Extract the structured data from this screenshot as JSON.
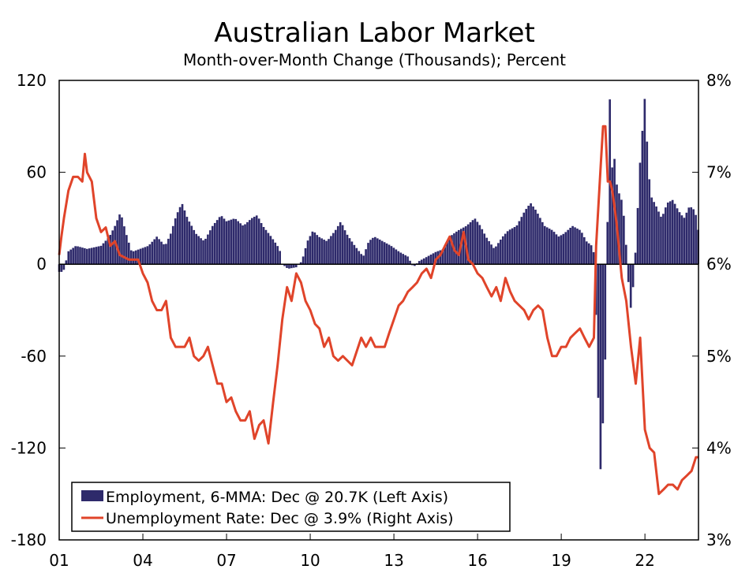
{
  "title": "Australian Labor Market",
  "subtitle": "Month-over-Month Change (Thousands); Percent",
  "colors": {
    "employment": "#2e2a6b",
    "unemployment": "#e0442a",
    "axis": "#000000"
  },
  "chart_data": {
    "type": "bar+line",
    "title": "Australian Labor Market",
    "subtitle": "Month-over-Month Change (Thousands); Percent",
    "left_axis": {
      "ylim": [
        -180,
        120
      ],
      "ticks": [
        "120",
        "60",
        "0",
        "-60",
        "-120",
        "-180"
      ],
      "tick_values": [
        120,
        60,
        0,
        -60,
        -120,
        -180
      ]
    },
    "right_axis": {
      "ylim": [
        3,
        8
      ],
      "ticks": [
        "8%",
        "7%",
        "6%",
        "5%",
        "4%",
        "3%"
      ],
      "tick_values": [
        8,
        7,
        6,
        5,
        4,
        3
      ]
    },
    "x_axis": {
      "range": [
        2001.0,
        2023.92
      ],
      "ticks": [
        "01",
        "04",
        "07",
        "10",
        "13",
        "16",
        "19",
        "22"
      ],
      "tick_values": [
        2001,
        2004,
        2007,
        2010,
        2013,
        2016,
        2019,
        2022
      ]
    },
    "legend": {
      "position": "bottom-left",
      "entries": [
        "Employment, 6-MMA: Dec @ 20.7K (Left Axis)",
        "Unemployment Rate: Dec @ 3.9% (Right Axis)"
      ]
    },
    "series": [
      {
        "name": "Employment, 6-MMA: Dec @ 20.7K (Left Axis)",
        "kind": "bar",
        "axis": "left",
        "x_start": 2001.0,
        "x_step": 0.0833,
        "values_note": "monthly, Jan 2001 onward",
        "keypoints": [
          [
            2001.0,
            -5
          ],
          [
            2001.1,
            -5
          ],
          [
            2001.2,
            -3
          ],
          [
            2001.3,
            8
          ],
          [
            2001.6,
            12
          ],
          [
            2002.0,
            10
          ],
          [
            2002.5,
            12
          ],
          [
            2002.8,
            18
          ],
          [
            2003.0,
            25
          ],
          [
            2003.2,
            34
          ],
          [
            2003.4,
            20
          ],
          [
            2003.6,
            8
          ],
          [
            2003.9,
            10
          ],
          [
            2004.2,
            12
          ],
          [
            2004.5,
            18
          ],
          [
            2004.8,
            12
          ],
          [
            2005.0,
            20
          ],
          [
            2005.2,
            32
          ],
          [
            2005.4,
            40
          ],
          [
            2005.6,
            30
          ],
          [
            2005.9,
            20
          ],
          [
            2006.2,
            15
          ],
          [
            2006.5,
            25
          ],
          [
            2006.8,
            32
          ],
          [
            2007.0,
            28
          ],
          [
            2007.3,
            30
          ],
          [
            2007.6,
            25
          ],
          [
            2007.9,
            30
          ],
          [
            2008.1,
            32
          ],
          [
            2008.3,
            25
          ],
          [
            2008.6,
            18
          ],
          [
            2008.9,
            10
          ],
          [
            2009.0,
            0
          ],
          [
            2009.2,
            -3
          ],
          [
            2009.5,
            -2
          ],
          [
            2009.7,
            2
          ],
          [
            2009.9,
            15
          ],
          [
            2010.1,
            22
          ],
          [
            2010.3,
            18
          ],
          [
            2010.6,
            15
          ],
          [
            2010.9,
            22
          ],
          [
            2011.1,
            28
          ],
          [
            2011.3,
            20
          ],
          [
            2011.6,
            12
          ],
          [
            2011.9,
            5
          ],
          [
            2012.1,
            15
          ],
          [
            2012.3,
            18
          ],
          [
            2012.6,
            15
          ],
          [
            2012.9,
            12
          ],
          [
            2013.2,
            8
          ],
          [
            2013.5,
            5
          ],
          [
            2013.7,
            -2
          ],
          [
            2013.9,
            2
          ],
          [
            2014.2,
            5
          ],
          [
            2014.5,
            8
          ],
          [
            2014.8,
            10
          ],
          [
            2015.0,
            18
          ],
          [
            2015.3,
            22
          ],
          [
            2015.6,
            25
          ],
          [
            2015.9,
            30
          ],
          [
            2016.1,
            25
          ],
          [
            2016.3,
            18
          ],
          [
            2016.6,
            10
          ],
          [
            2016.9,
            18
          ],
          [
            2017.1,
            22
          ],
          [
            2017.4,
            25
          ],
          [
            2017.7,
            35
          ],
          [
            2017.9,
            40
          ],
          [
            2018.1,
            35
          ],
          [
            2018.4,
            25
          ],
          [
            2018.7,
            22
          ],
          [
            2018.9,
            18
          ],
          [
            2019.1,
            20
          ],
          [
            2019.4,
            25
          ],
          [
            2019.7,
            22
          ],
          [
            2019.9,
            15
          ],
          [
            2020.1,
            12
          ],
          [
            2020.2,
            5
          ],
          [
            2020.25,
            -40
          ],
          [
            2020.33,
            -90
          ],
          [
            2020.42,
            -140
          ],
          [
            2020.5,
            -100
          ],
          [
            2020.58,
            -60
          ],
          [
            2020.67,
            40
          ],
          [
            2020.75,
            115
          ],
          [
            2020.83,
            60
          ],
          [
            2020.92,
            70
          ],
          [
            2021.0,
            50
          ],
          [
            2021.1,
            45
          ],
          [
            2021.2,
            40
          ],
          [
            2021.3,
            20
          ],
          [
            2021.42,
            -15
          ],
          [
            2021.5,
            -30
          ],
          [
            2021.6,
            -10
          ],
          [
            2021.7,
            20
          ],
          [
            2021.8,
            60
          ],
          [
            2022.0,
            110
          ],
          [
            2022.1,
            70
          ],
          [
            2022.2,
            45
          ],
          [
            2022.4,
            38
          ],
          [
            2022.6,
            30
          ],
          [
            2022.8,
            40
          ],
          [
            2023.0,
            42
          ],
          [
            2023.2,
            35
          ],
          [
            2023.4,
            30
          ],
          [
            2023.6,
            38
          ],
          [
            2023.8,
            35
          ],
          [
            2023.92,
            21
          ]
        ]
      },
      {
        "name": "Unemployment Rate: Dec @ 3.9% (Right Axis)",
        "kind": "line",
        "axis": "right",
        "points": [
          [
            2001.0,
            6.1
          ],
          [
            2001.08,
            6.3
          ],
          [
            2001.17,
            6.5
          ],
          [
            2001.33,
            6.8
          ],
          [
            2001.5,
            6.95
          ],
          [
            2001.67,
            6.95
          ],
          [
            2001.83,
            6.9
          ],
          [
            2001.92,
            7.2
          ],
          [
            2002.0,
            7.0
          ],
          [
            2002.17,
            6.9
          ],
          [
            2002.33,
            6.5
          ],
          [
            2002.5,
            6.35
          ],
          [
            2002.67,
            6.4
          ],
          [
            2002.83,
            6.2
          ],
          [
            2003.0,
            6.25
          ],
          [
            2003.17,
            6.1
          ],
          [
            2003.5,
            6.05
          ],
          [
            2003.83,
            6.05
          ],
          [
            2004.0,
            5.9
          ],
          [
            2004.17,
            5.8
          ],
          [
            2004.33,
            5.6
          ],
          [
            2004.5,
            5.5
          ],
          [
            2004.67,
            5.5
          ],
          [
            2004.83,
            5.6
          ],
          [
            2005.0,
            5.2
          ],
          [
            2005.17,
            5.1
          ],
          [
            2005.5,
            5.1
          ],
          [
            2005.67,
            5.2
          ],
          [
            2005.83,
            5.0
          ],
          [
            2006.0,
            4.95
          ],
          [
            2006.17,
            5.0
          ],
          [
            2006.33,
            5.1
          ],
          [
            2006.5,
            4.9
          ],
          [
            2006.67,
            4.7
          ],
          [
            2006.83,
            4.7
          ],
          [
            2007.0,
            4.5
          ],
          [
            2007.17,
            4.55
          ],
          [
            2007.33,
            4.4
          ],
          [
            2007.5,
            4.3
          ],
          [
            2007.67,
            4.3
          ],
          [
            2007.83,
            4.4
          ],
          [
            2008.0,
            4.1
          ],
          [
            2008.17,
            4.25
          ],
          [
            2008.33,
            4.3
          ],
          [
            2008.5,
            4.05
          ],
          [
            2008.67,
            4.5
          ],
          [
            2008.83,
            4.9
          ],
          [
            2009.0,
            5.4
          ],
          [
            2009.17,
            5.75
          ],
          [
            2009.33,
            5.6
          ],
          [
            2009.5,
            5.9
          ],
          [
            2009.67,
            5.8
          ],
          [
            2009.83,
            5.6
          ],
          [
            2010.0,
            5.5
          ],
          [
            2010.17,
            5.35
          ],
          [
            2010.33,
            5.3
          ],
          [
            2010.5,
            5.1
          ],
          [
            2010.67,
            5.2
          ],
          [
            2010.83,
            5.0
          ],
          [
            2011.0,
            4.95
          ],
          [
            2011.17,
            5.0
          ],
          [
            2011.5,
            4.9
          ],
          [
            2011.83,
            5.2
          ],
          [
            2012.0,
            5.1
          ],
          [
            2012.17,
            5.2
          ],
          [
            2012.33,
            5.1
          ],
          [
            2012.67,
            5.1
          ],
          [
            2012.83,
            5.25
          ],
          [
            2013.0,
            5.4
          ],
          [
            2013.17,
            5.55
          ],
          [
            2013.33,
            5.6
          ],
          [
            2013.5,
            5.7
          ],
          [
            2013.67,
            5.75
          ],
          [
            2013.83,
            5.8
          ],
          [
            2014.0,
            5.9
          ],
          [
            2014.17,
            5.95
          ],
          [
            2014.33,
            5.85
          ],
          [
            2014.5,
            6.05
          ],
          [
            2014.67,
            6.1
          ],
          [
            2014.83,
            6.2
          ],
          [
            2015.0,
            6.3
          ],
          [
            2015.17,
            6.15
          ],
          [
            2015.33,
            6.1
          ],
          [
            2015.5,
            6.35
          ],
          [
            2015.67,
            6.05
          ],
          [
            2015.83,
            6.0
          ],
          [
            2016.0,
            5.9
          ],
          [
            2016.17,
            5.85
          ],
          [
            2016.33,
            5.75
          ],
          [
            2016.5,
            5.65
          ],
          [
            2016.67,
            5.75
          ],
          [
            2016.83,
            5.6
          ],
          [
            2017.0,
            5.85
          ],
          [
            2017.17,
            5.7
          ],
          [
            2017.33,
            5.6
          ],
          [
            2017.5,
            5.55
          ],
          [
            2017.67,
            5.5
          ],
          [
            2017.83,
            5.4
          ],
          [
            2018.0,
            5.5
          ],
          [
            2018.17,
            5.55
          ],
          [
            2018.33,
            5.5
          ],
          [
            2018.5,
            5.2
          ],
          [
            2018.67,
            5.0
          ],
          [
            2018.83,
            5.0
          ],
          [
            2019.0,
            5.1
          ],
          [
            2019.17,
            5.1
          ],
          [
            2019.33,
            5.2
          ],
          [
            2019.5,
            5.25
          ],
          [
            2019.67,
            5.3
          ],
          [
            2019.83,
            5.2
          ],
          [
            2020.0,
            5.1
          ],
          [
            2020.17,
            5.2
          ],
          [
            2020.25,
            6.2
          ],
          [
            2020.42,
            7.1
          ],
          [
            2020.5,
            7.5
          ],
          [
            2020.58,
            7.5
          ],
          [
            2020.67,
            6.9
          ],
          [
            2020.75,
            6.9
          ],
          [
            2020.83,
            6.8
          ],
          [
            2020.92,
            6.6
          ],
          [
            2021.0,
            6.4
          ],
          [
            2021.17,
            5.85
          ],
          [
            2021.33,
            5.6
          ],
          [
            2021.5,
            5.1
          ],
          [
            2021.67,
            4.7
          ],
          [
            2021.83,
            5.2
          ],
          [
            2022.0,
            4.2
          ],
          [
            2022.17,
            4.0
          ],
          [
            2022.33,
            3.95
          ],
          [
            2022.5,
            3.5
          ],
          [
            2022.67,
            3.55
          ],
          [
            2022.83,
            3.6
          ],
          [
            2023.0,
            3.6
          ],
          [
            2023.17,
            3.55
          ],
          [
            2023.33,
            3.65
          ],
          [
            2023.5,
            3.7
          ],
          [
            2023.67,
            3.75
          ],
          [
            2023.83,
            3.9
          ],
          [
            2023.92,
            3.9
          ]
        ]
      }
    ]
  }
}
